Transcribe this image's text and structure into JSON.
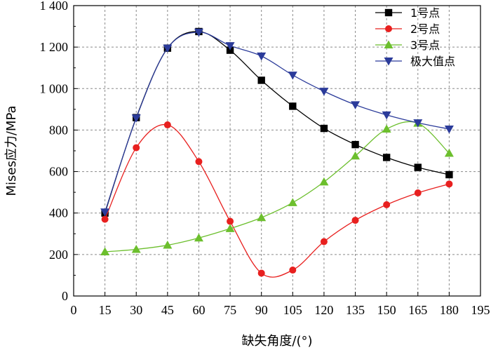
{
  "chart_data": {
    "type": "line",
    "title": "",
    "xlabel": "缺失角度/(°)",
    "ylabel": "Mises应力/MPa",
    "xlim": [
      0,
      195
    ],
    "ylim": [
      0,
      1400
    ],
    "xticks": [
      0,
      15,
      30,
      45,
      60,
      75,
      90,
      105,
      120,
      135,
      150,
      165,
      180,
      195
    ],
    "xtick_labels": [
      "0",
      "15",
      "30",
      "45",
      "60",
      "75",
      "90",
      "105",
      "120",
      "135",
      "150",
      "165",
      "180",
      "195"
    ],
    "yticks": [
      0,
      200,
      400,
      600,
      800,
      1000,
      1200,
      1400
    ],
    "ytick_labels": [
      "0",
      "200",
      "400",
      "600",
      "800",
      "1 000",
      "1 200",
      "1 400"
    ],
    "grid": true,
    "legend_position": "top-right",
    "x": [
      15,
      30,
      45,
      60,
      75,
      90,
      105,
      120,
      135,
      150,
      165,
      180
    ],
    "series": [
      {
        "name": "1号点",
        "color": "#000000",
        "marker": "square",
        "values": [
          400,
          860,
          1195,
          1275,
          1185,
          1040,
          915,
          808,
          730,
          668,
          620,
          585
        ]
      },
      {
        "name": "2号点",
        "color": "#e8201f",
        "marker": "circle",
        "values": [
          370,
          715,
          825,
          648,
          360,
          110,
          125,
          262,
          365,
          440,
          497,
          540
        ]
      },
      {
        "name": "3号点",
        "color": "#6cbf2d",
        "marker": "triangle-up",
        "values": [
          213,
          225,
          245,
          280,
          325,
          378,
          450,
          550,
          675,
          805,
          833,
          688
        ]
      },
      {
        "name": "极大值点",
        "color": "#2b3b9a",
        "marker": "triangle-down",
        "values": [
          405,
          858,
          1195,
          1272,
          1207,
          1157,
          1065,
          987,
          922,
          873,
          835,
          805
        ]
      }
    ]
  }
}
